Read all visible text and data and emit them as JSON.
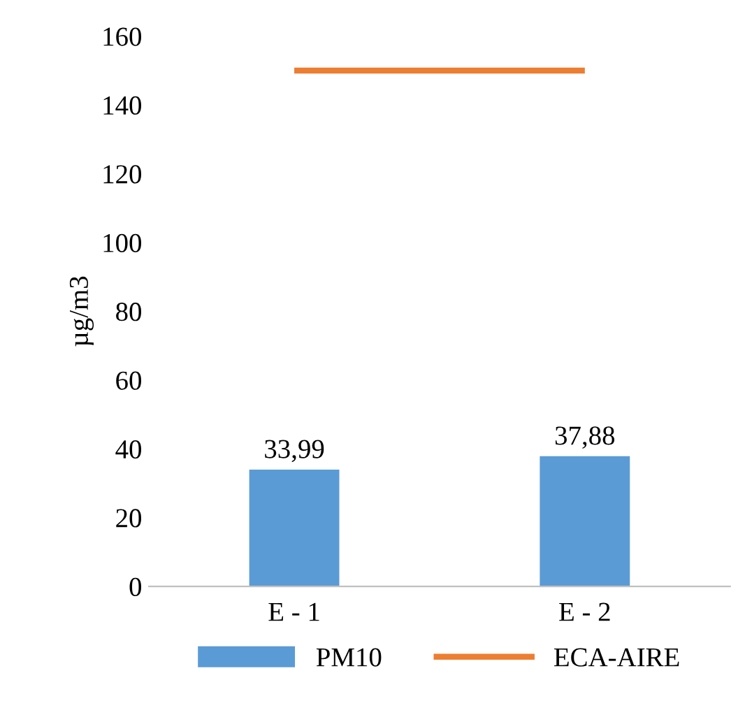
{
  "chart_data": {
    "type": "bar",
    "ylabel": "µg/m3",
    "categories": [
      "E - 1",
      "E - 2"
    ],
    "series": [
      {
        "name": "PM10",
        "color": "#5b9bd5",
        "values": [
          33.99,
          37.88
        ],
        "value_labels": [
          "33,99",
          "37,88"
        ]
      },
      {
        "name": "ECA-AIRE",
        "type": "line",
        "color": "#ed7d31",
        "values": [
          150,
          150
        ],
        "marker": "none"
      }
    ],
    "ylim": [
      0,
      160
    ],
    "yticks": [
      0,
      20,
      40,
      60,
      80,
      100,
      120,
      140,
      160
    ],
    "grid": false,
    "legend": "bottom"
  }
}
